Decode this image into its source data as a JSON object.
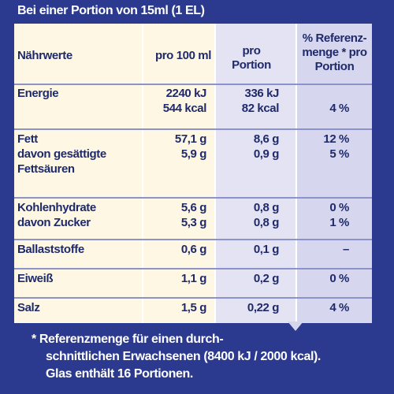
{
  "header": {
    "title": "Bei einer Portion von 15ml (1 EL)"
  },
  "table": {
    "columns": [
      [
        "Nährwerte"
      ],
      [
        "pro 100 ml"
      ],
      [
        "pro",
        "Portion"
      ],
      [
        "% Referenz-",
        "menge * pro",
        "Portion"
      ]
    ],
    "rows": [
      [
        [
          "Energie"
        ],
        [
          "2240 kJ",
          "544 kcal"
        ],
        [
          "336 kJ",
          "82 kcal"
        ],
        [
          "4 %"
        ]
      ],
      [
        [
          "Fett",
          "davon gesättigte",
          "Fettsäuren"
        ],
        [
          "57,1 g",
          "5,9 g"
        ],
        [
          "8,6 g",
          "0,9 g"
        ],
        [
          "12 %",
          "5 %"
        ]
      ],
      [
        [
          "Kohlenhydrate",
          "davon Zucker"
        ],
        [
          "5,6 g",
          "5,3 g"
        ],
        [
          "0,8 g",
          "0,8 g"
        ],
        [
          "0 %",
          "1 %"
        ]
      ],
      [
        [
          "Ballaststoffe"
        ],
        [
          "0,6 g"
        ],
        [
          "0,1 g"
        ],
        [
          "–"
        ]
      ],
      [
        [
          "Eiweiß"
        ],
        [
          "1,1 g"
        ],
        [
          "0,2 g"
        ],
        [
          "0 %"
        ]
      ],
      [
        [
          "Salz"
        ],
        [
          "1,5 g"
        ],
        [
          "0,22 g"
        ],
        [
          "4 %"
        ]
      ]
    ]
  },
  "footer": {
    "lines": [
      "* Referenzmenge für einen durch-",
      "schnittlichen Erwachsenen (8400 kJ / 2000 kcal).",
      "Glas enthält 16 Portionen."
    ]
  }
}
